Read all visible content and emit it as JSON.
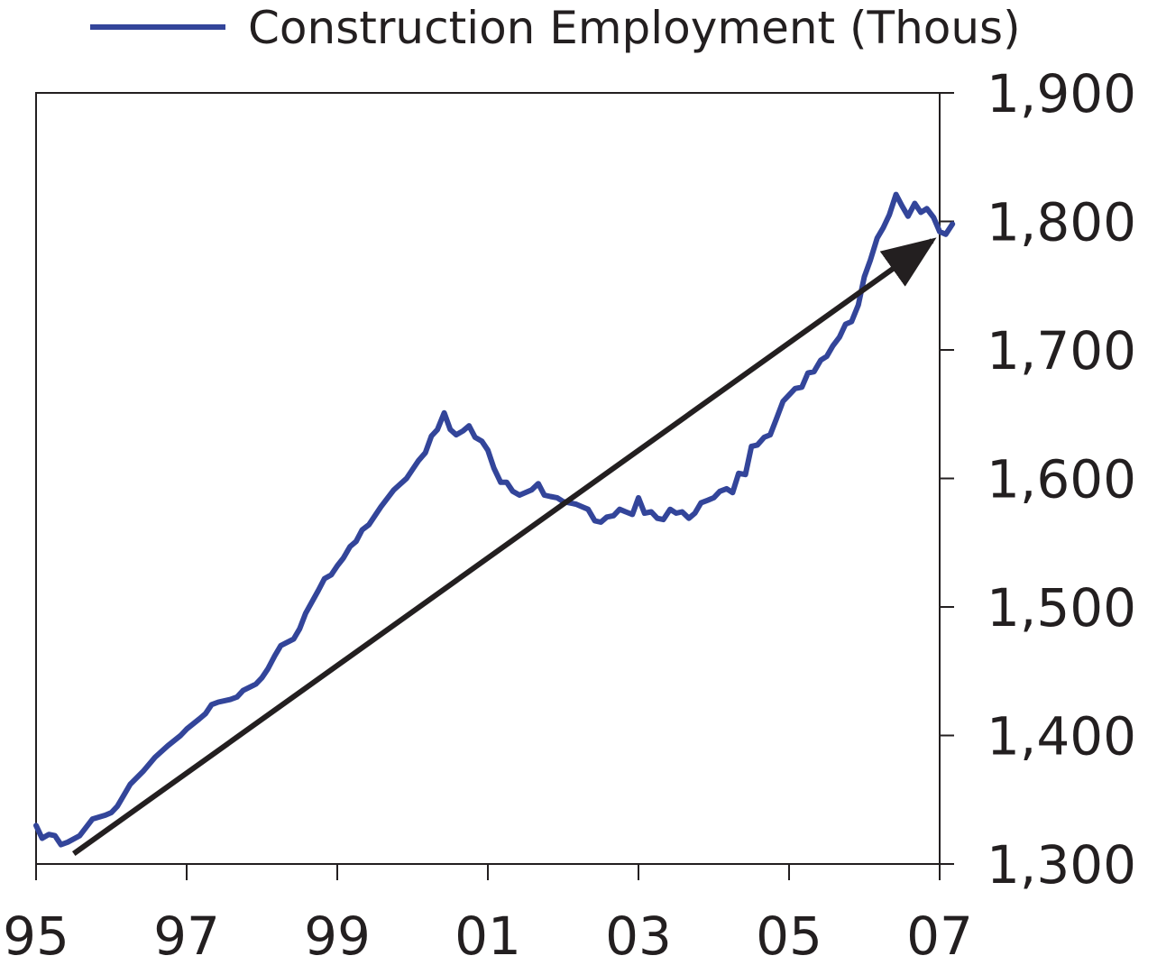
{
  "chart_data": {
    "type": "line",
    "title": "",
    "xlabel": "",
    "ylabel": "",
    "legend": {
      "placement": "top-center",
      "entries": [
        {
          "label": "Construction Employment (Thous)",
          "color": "#33459a"
        }
      ]
    },
    "x_range": [
      1995.0,
      2007.0
    ],
    "ylim": [
      1300,
      1900
    ],
    "y_axis_side": "right",
    "grid": false,
    "x_ticks": [
      {
        "value": 1995,
        "label": "95"
      },
      {
        "value": 1997,
        "label": "97"
      },
      {
        "value": 1999,
        "label": "99"
      },
      {
        "value": 2001,
        "label": "01"
      },
      {
        "value": 2003,
        "label": "03"
      },
      {
        "value": 2005,
        "label": "05"
      },
      {
        "value": 2007,
        "label": "07"
      }
    ],
    "y_ticks": [
      {
        "value": 1300,
        "label": "1,300"
      },
      {
        "value": 1400,
        "label": "1,400"
      },
      {
        "value": 1500,
        "label": "1,500"
      },
      {
        "value": 1600,
        "label": "1,600"
      },
      {
        "value": 1700,
        "label": "1,700"
      },
      {
        "value": 1800,
        "label": "1,800"
      },
      {
        "value": 1900,
        "label": "1,900"
      }
    ],
    "series": [
      {
        "name": "Construction Employment (Thous)",
        "color": "#33459a",
        "points": [
          [
            1995.0,
            1330
          ],
          [
            1995.08,
            1320
          ],
          [
            1995.17,
            1323
          ],
          [
            1995.25,
            1322
          ],
          [
            1995.33,
            1315
          ],
          [
            1995.42,
            1317
          ],
          [
            1995.58,
            1322
          ],
          [
            1995.75,
            1335
          ],
          [
            1995.92,
            1338
          ],
          [
            1996.0,
            1340
          ],
          [
            1996.08,
            1345
          ],
          [
            1996.25,
            1362
          ],
          [
            1996.42,
            1372
          ],
          [
            1996.58,
            1383
          ],
          [
            1996.75,
            1392
          ],
          [
            1996.92,
            1400
          ],
          [
            1997.0,
            1405
          ],
          [
            1997.17,
            1413
          ],
          [
            1997.25,
            1417
          ],
          [
            1997.33,
            1424
          ],
          [
            1997.42,
            1426
          ],
          [
            1997.58,
            1428
          ],
          [
            1997.67,
            1430
          ],
          [
            1997.75,
            1435
          ],
          [
            1997.92,
            1440
          ],
          [
            1998.0,
            1445
          ],
          [
            1998.08,
            1452
          ],
          [
            1998.17,
            1462
          ],
          [
            1998.25,
            1470
          ],
          [
            1998.42,
            1475
          ],
          [
            1998.5,
            1483
          ],
          [
            1998.58,
            1495
          ],
          [
            1998.75,
            1513
          ],
          [
            1998.83,
            1522
          ],
          [
            1998.92,
            1525
          ],
          [
            1999.0,
            1532
          ],
          [
            1999.08,
            1538
          ],
          [
            1999.17,
            1547
          ],
          [
            1999.25,
            1551
          ],
          [
            1999.33,
            1560
          ],
          [
            1999.42,
            1564
          ],
          [
            1999.58,
            1578
          ],
          [
            1999.75,
            1591
          ],
          [
            1999.92,
            1600
          ],
          [
            2000.0,
            1607
          ],
          [
            2000.08,
            1614
          ],
          [
            2000.17,
            1620
          ],
          [
            2000.25,
            1633
          ],
          [
            2000.33,
            1638
          ],
          [
            2000.42,
            1651
          ],
          [
            2000.5,
            1638
          ],
          [
            2000.58,
            1634
          ],
          [
            2000.67,
            1637
          ],
          [
            2000.75,
            1641
          ],
          [
            2000.83,
            1632
          ],
          [
            2000.92,
            1629
          ],
          [
            2001.0,
            1622
          ],
          [
            2001.08,
            1608
          ],
          [
            2001.17,
            1597
          ],
          [
            2001.25,
            1597
          ],
          [
            2001.33,
            1590
          ],
          [
            2001.42,
            1587
          ],
          [
            2001.58,
            1591
          ],
          [
            2001.67,
            1596
          ],
          [
            2001.75,
            1587
          ],
          [
            2001.83,
            1586
          ],
          [
            2001.92,
            1585
          ],
          [
            2002.0,
            1582
          ],
          [
            2002.17,
            1580
          ],
          [
            2002.25,
            1578
          ],
          [
            2002.33,
            1576
          ],
          [
            2002.42,
            1567
          ],
          [
            2002.5,
            1566
          ],
          [
            2002.58,
            1570
          ],
          [
            2002.67,
            1571
          ],
          [
            2002.75,
            1576
          ],
          [
            2002.83,
            1574
          ],
          [
            2002.92,
            1572
          ],
          [
            2003.0,
            1585
          ],
          [
            2003.08,
            1573
          ],
          [
            2003.17,
            1574
          ],
          [
            2003.25,
            1569
          ],
          [
            2003.33,
            1568
          ],
          [
            2003.42,
            1576
          ],
          [
            2003.5,
            1573
          ],
          [
            2003.58,
            1574
          ],
          [
            2003.67,
            1569
          ],
          [
            2003.75,
            1573
          ],
          [
            2003.83,
            1581
          ],
          [
            2003.92,
            1583
          ],
          [
            2004.0,
            1585
          ],
          [
            2004.08,
            1590
          ],
          [
            2004.17,
            1592
          ],
          [
            2004.25,
            1589
          ],
          [
            2004.33,
            1604
          ],
          [
            2004.42,
            1603
          ],
          [
            2004.5,
            1625
          ],
          [
            2004.58,
            1626
          ],
          [
            2004.67,
            1632
          ],
          [
            2004.75,
            1634
          ],
          [
            2004.83,
            1646
          ],
          [
            2004.92,
            1660
          ],
          [
            2005.0,
            1665
          ],
          [
            2005.08,
            1670
          ],
          [
            2005.17,
            1671
          ],
          [
            2005.25,
            1682
          ],
          [
            2005.33,
            1683
          ],
          [
            2005.42,
            1692
          ],
          [
            2005.5,
            1695
          ],
          [
            2005.58,
            1703
          ],
          [
            2005.67,
            1710
          ],
          [
            2005.75,
            1720
          ],
          [
            2005.83,
            1722
          ],
          [
            2005.92,
            1735
          ],
          [
            2006.0,
            1757
          ],
          [
            2006.08,
            1770
          ],
          [
            2006.17,
            1787
          ],
          [
            2006.25,
            1795
          ],
          [
            2006.33,
            1805
          ],
          [
            2006.42,
            1821
          ],
          [
            2006.5,
            1812
          ],
          [
            2006.58,
            1804
          ],
          [
            2006.67,
            1814
          ],
          [
            2006.75,
            1807
          ],
          [
            2006.83,
            1810
          ],
          [
            2006.92,
            1803
          ],
          [
            2007.0,
            1792
          ],
          [
            2007.08,
            1790
          ],
          [
            2007.17,
            1798
          ]
        ]
      }
    ],
    "annotations": [
      {
        "type": "trend-arrow",
        "from": [
          1995.5,
          1308
        ],
        "to": [
          2006.9,
          1785
        ],
        "color": "#231f20"
      }
    ]
  }
}
